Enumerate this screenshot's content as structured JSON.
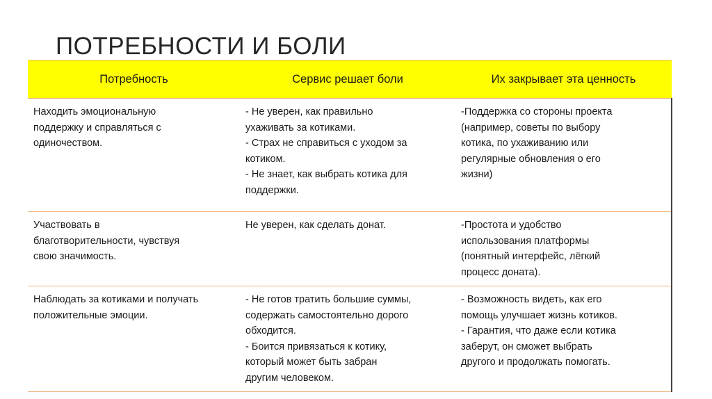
{
  "title": "ПОТРЕБНОСТИ И БОЛИ",
  "table": {
    "headers": [
      "Потребность",
      "Сервис решает боли",
      "Их закрывает эта ценность"
    ],
    "header_color": "#ffff00",
    "border_color": "#f0b27a",
    "rows": [
      [
        "Находить эмоциональную\nподдержку и справляться с\nодиночеством.",
        "- Не уверен, как правильно\nухаживать за котиками.\n- Страх не справиться с уходом за\nкотиком.\n- Не знает, как выбрать котика для\nподдержки.",
        "-Поддержка со стороны проекта\n(например, советы по выбору\nкотика, по ухаживанию или\nрегулярные обновления о его\nжизни)"
      ],
      [
        "Участвовать в\nблаготворительности, чувствуя\nсвою значимость.",
        "Не уверен, как сделать донат.",
        "-Простота и удобство\nиспользования платформы\n(понятный интерфейс, лёгкий\nпроцесс доната)."
      ],
      [
        "Наблюдать за котиками и получать\nположительные эмоции.",
        "- Не готов тратить большие суммы,\nсодержать самостоятельно дорого\nобходится.\n- Боится привязаться к котику,\nкоторый может быть забран\nдругим человеком.",
        "- Возможность видеть, как его\nпомощь улучшает жизнь котиков.\n- Гарантия, что даже если котика\nзаберут, он сможет выбрать\nдругого и продолжать помогать."
      ]
    ]
  }
}
